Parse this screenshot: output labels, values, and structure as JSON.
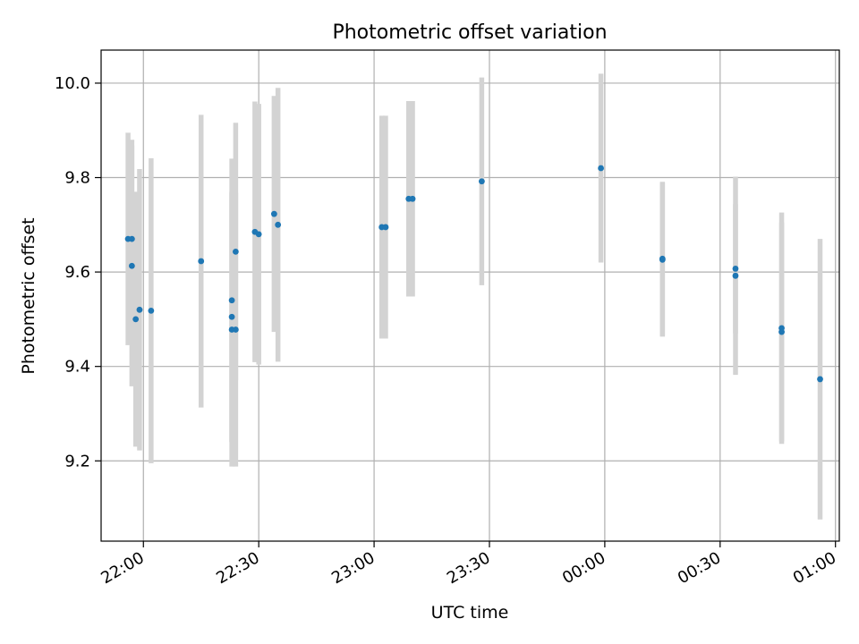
{
  "chart_data": {
    "type": "scatter",
    "title": "Photometric offset variation",
    "xlabel": "UTC time",
    "ylabel": "Photometric offset",
    "grid": true,
    "x_unit": "UTC time (HH:MM)",
    "xlim": [
      "21:49",
      "01:01"
    ],
    "ylim": [
      9.03,
      10.07
    ],
    "x_ticks": [
      "22:00",
      "22:30",
      "23:00",
      "23:30",
      "00:00",
      "00:30",
      "01:00"
    ],
    "y_ticks": [
      "9.2",
      "9.4",
      "9.6",
      "9.8",
      "10.0"
    ],
    "marker_color": "#1f77b4",
    "errorbar_color": "#d3d3d3",
    "points": [
      {
        "x": "21:56",
        "y": 9.67,
        "yerr": 0.225
      },
      {
        "x": "21:57",
        "y": 9.67,
        "yerr": 0.21
      },
      {
        "x": "21:57",
        "y": 9.613,
        "yerr": 0.255
      },
      {
        "x": "21:58",
        "y": 9.5,
        "yerr": 0.27
      },
      {
        "x": "21:59",
        "y": 9.52,
        "yerr": 0.298
      },
      {
        "x": "22:02",
        "y": 9.518,
        "yerr": 0.323
      },
      {
        "x": "22:15",
        "y": 9.623,
        "yerr": 0.31
      },
      {
        "x": "22:23",
        "y": 9.54,
        "yerr": 0.3
      },
      {
        "x": "22:23",
        "y": 9.505,
        "yerr": 0.265
      },
      {
        "x": "22:23",
        "y": 9.478,
        "yerr": 0.29
      },
      {
        "x": "22:24",
        "y": 9.478,
        "yerr": 0.29
      },
      {
        "x": "22:24",
        "y": 9.643,
        "yerr": 0.273
      },
      {
        "x": "22:29",
        "y": 9.685,
        "yerr": 0.276
      },
      {
        "x": "22:30",
        "y": 9.68,
        "yerr": 0.276
      },
      {
        "x": "22:34",
        "y": 9.723,
        "yerr": 0.25
      },
      {
        "x": "22:35",
        "y": 9.7,
        "yerr": 0.29
      },
      {
        "x": "23:02",
        "y": 9.695,
        "yerr": 0.236
      },
      {
        "x": "23:03",
        "y": 9.695,
        "yerr": 0.236
      },
      {
        "x": "23:09",
        "y": 9.755,
        "yerr": 0.207
      },
      {
        "x": "23:10",
        "y": 9.755,
        "yerr": 0.207
      },
      {
        "x": "23:28",
        "y": 9.792,
        "yerr": 0.22
      },
      {
        "x": "23:59",
        "y": 9.82,
        "yerr": 0.2
      },
      {
        "x": "00:15",
        "y": 9.628,
        "yerr": 0.163
      },
      {
        "x": "00:15",
        "y": 9.626,
        "yerr": 0.163
      },
      {
        "x": "00:34",
        "y": 9.607,
        "yerr": 0.137
      },
      {
        "x": "00:34",
        "y": 9.592,
        "yerr": 0.21
      },
      {
        "x": "00:46",
        "y": 9.473,
        "yerr": 0.232
      },
      {
        "x": "00:46",
        "y": 9.481,
        "yerr": 0.245
      },
      {
        "x": "00:56",
        "y": 9.373,
        "yerr": 0.297
      }
    ]
  }
}
